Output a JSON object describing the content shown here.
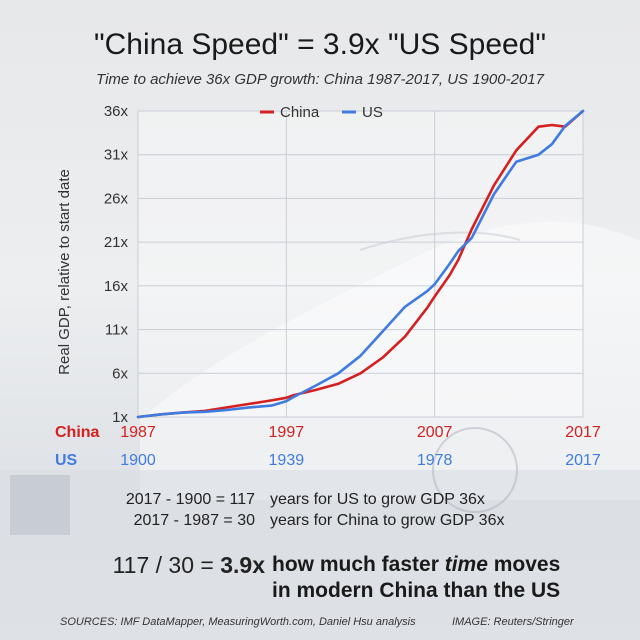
{
  "title": "\"China Speed\" = 3.9x \"US Speed\"",
  "subtitle": "Time to achieve 36x GDP growth: China 1987-2017, US 1900-2017",
  "chart_data": {
    "type": "line",
    "title": "\"China Speed\" = 3.9x \"US Speed\"",
    "subtitle": "Time to achieve 36x GDP growth: China 1987-2017, US 1900-2017",
    "ylabel": "Real GDP, relative to start date",
    "xlabel": "",
    "ylim": [
      1,
      36
    ],
    "y_ticks": [
      "1x",
      "6x",
      "11x",
      "16x",
      "21x",
      "26x",
      "31x",
      "36x"
    ],
    "y_tick_values": [
      1,
      6,
      11,
      16,
      21,
      26,
      31,
      36
    ],
    "grid": true,
    "legend_position": "top",
    "x_axes": [
      {
        "row_label": "China",
        "ticks": [
          "1987",
          "1997",
          "2007",
          "2017"
        ]
      },
      {
        "row_label": "US",
        "ticks": [
          "1900",
          "1939",
          "1978",
          "2017"
        ]
      }
    ],
    "x_progress": [
      0,
      0.05,
      0.1,
      0.15,
      0.2,
      0.25,
      0.3,
      0.333,
      0.35,
      0.4,
      0.45,
      0.5,
      0.55,
      0.6,
      0.65,
      0.667,
      0.7,
      0.72,
      0.75,
      0.8,
      0.85,
      0.9,
      0.93,
      0.96,
      1.0
    ],
    "series": [
      {
        "name": "China",
        "color": "#d42020",
        "values": [
          1.0,
          1.3,
          1.5,
          1.7,
          2.1,
          2.5,
          2.9,
          3.2,
          3.5,
          4.1,
          4.8,
          6.0,
          7.8,
          10.2,
          13.5,
          14.8,
          17.2,
          19.0,
          22.5,
          27.5,
          31.5,
          34.2,
          34.4,
          34.2,
          36.0
        ]
      },
      {
        "name": "US",
        "color": "#3f7be0",
        "values": [
          1.0,
          1.3,
          1.5,
          1.6,
          1.8,
          2.1,
          2.3,
          2.8,
          3.3,
          4.6,
          6.0,
          8.0,
          10.8,
          13.6,
          15.4,
          16.2,
          18.5,
          20.0,
          21.5,
          26.5,
          30.2,
          31.0,
          32.2,
          34.3,
          36.0
        ]
      }
    ]
  },
  "calc": {
    "us_eq": "2017 - 1900 = 117",
    "us_text": "years for US to grow GDP 36x",
    "china_eq": "2017 - 1987 = 30",
    "china_text": "years for China to grow GDP 36x",
    "ratio_prefix": "117 / 30 = ",
    "ratio_value": "3.9x",
    "ratio_line1_a": "how much faster ",
    "ratio_line1_em": "time",
    "ratio_line1_b": " moves",
    "ratio_line2": "in modern China than the US"
  },
  "footer": {
    "sources": "SOURCES: IMF DataMapper, MeasuringWorth.com, Daniel Hsu analysis",
    "image_credit": "IMAGE: Reuters/Stringer"
  }
}
